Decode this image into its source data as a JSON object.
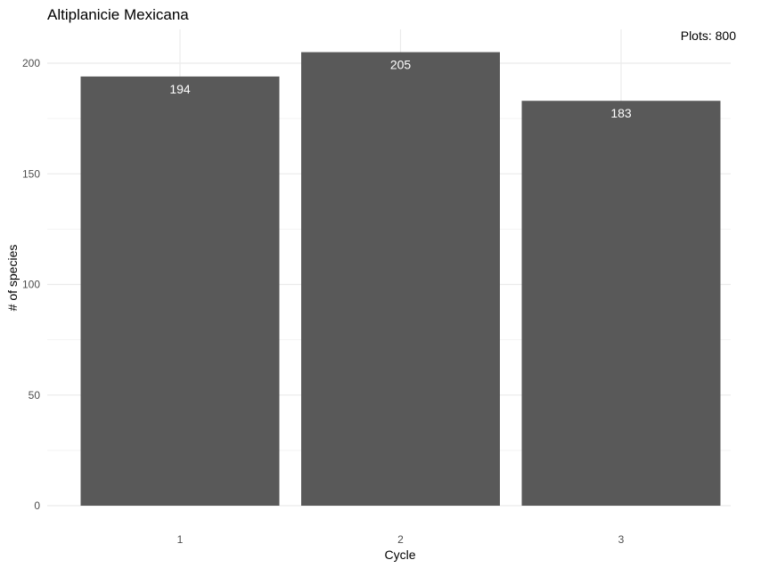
{
  "chart_data": {
    "type": "bar",
    "title": "Altiplanicie Mexicana",
    "annotation": "Plots: 800",
    "annotation_position": "top-right",
    "xlabel": "Cycle",
    "ylabel": "# of species",
    "categories": [
      "1",
      "2",
      "3"
    ],
    "values": [
      194,
      205,
      183
    ],
    "value_labels": [
      "194",
      "205",
      "183"
    ],
    "ylim": [
      0,
      210
    ],
    "yticks": [
      0,
      50,
      100,
      150,
      200
    ],
    "ytick_labels": [
      "0",
      "50",
      "100",
      "150",
      "200"
    ],
    "grid": true,
    "legend": "none",
    "bar_color": "#595959",
    "bar_label_color": "#ffffff",
    "grid_color": "#ebebeb",
    "background_color": "#ffffff"
  }
}
